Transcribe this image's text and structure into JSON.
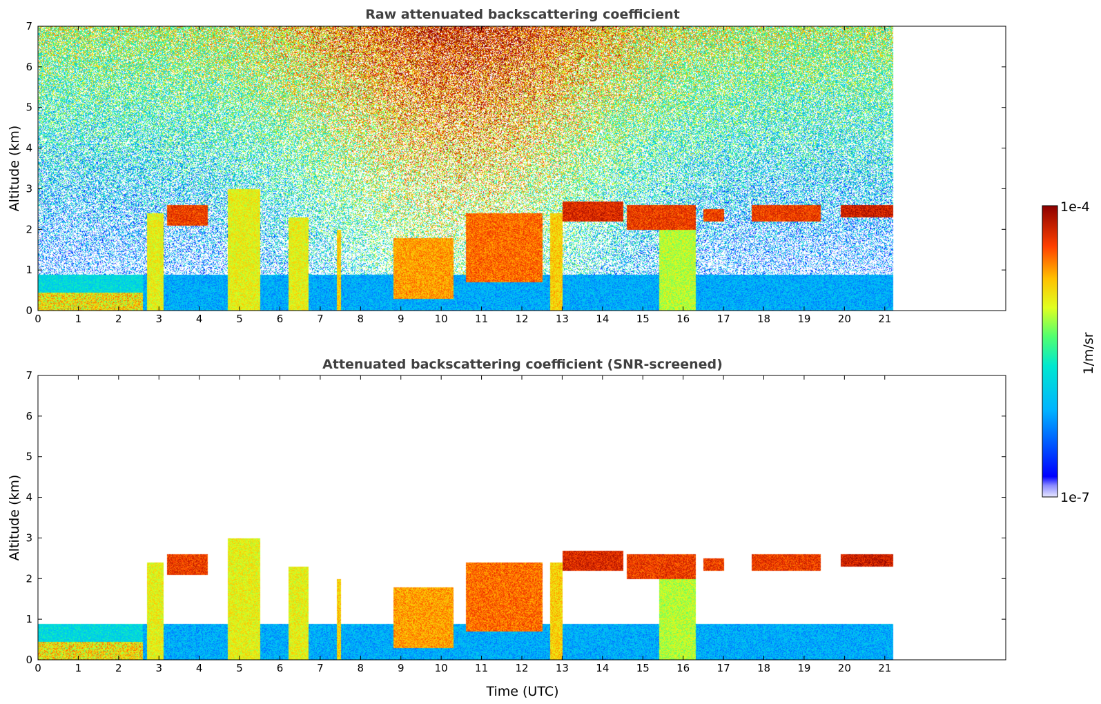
{
  "chart_data": [
    {
      "type": "heatmap",
      "title": "Raw attenuated backscattering coefficient",
      "xlabel": "",
      "ylabel": "Altitude (km)",
      "xlim": [
        0,
        24
      ],
      "ylim": [
        0,
        7
      ],
      "x_ticks": [
        "0",
        "1",
        "2",
        "3",
        "4",
        "5",
        "6",
        "7",
        "8",
        "9",
        "10",
        "11",
        "12",
        "13",
        "14",
        "15",
        "16",
        "17",
        "18",
        "19",
        "20",
        "21"
      ],
      "y_ticks": [
        "0",
        "1",
        "2",
        "3",
        "4",
        "5",
        "6",
        "7"
      ],
      "data_extent_hours": [
        0,
        21.2
      ],
      "grid": false,
      "cloud_layers": [
        {
          "t": [
            2.7,
            3.1
          ],
          "z": [
            0,
            2.4
          ],
          "level": 0.75
        },
        {
          "t": [
            3.2,
            4.2
          ],
          "z": [
            2.1,
            2.6
          ],
          "level": 0.95
        },
        {
          "t": [
            4.7,
            5.5
          ],
          "z": [
            0,
            3.0
          ],
          "level": 0.75
        },
        {
          "t": [
            6.2,
            6.7
          ],
          "z": [
            0,
            2.3
          ],
          "level": 0.75
        },
        {
          "t": [
            7.4,
            7.5
          ],
          "z": [
            0,
            2.0
          ],
          "level": 0.8
        },
        {
          "t": [
            8.8,
            10.3
          ],
          "z": [
            0.3,
            1.8
          ],
          "level": 0.85
        },
        {
          "t": [
            10.6,
            12.5
          ],
          "z": [
            0.7,
            2.4
          ],
          "level": 0.9
        },
        {
          "t": [
            12.7,
            13.0
          ],
          "z": [
            0,
            2.4
          ],
          "level": 0.8
        },
        {
          "t": [
            13.0,
            14.5
          ],
          "z": [
            2.2,
            2.7
          ],
          "level": 0.98
        },
        {
          "t": [
            14.6,
            16.3
          ],
          "z": [
            2.0,
            2.6
          ],
          "level": 0.95
        },
        {
          "t": [
            15.4,
            16.3
          ],
          "z": [
            0,
            2.3
          ],
          "level": 0.7
        },
        {
          "t": [
            16.5,
            17.0
          ],
          "z": [
            2.2,
            2.5
          ],
          "level": 0.95
        },
        {
          "t": [
            17.7,
            19.4
          ],
          "z": [
            2.2,
            2.6
          ],
          "level": 0.95
        },
        {
          "t": [
            19.9,
            21.2
          ],
          "z": [
            2.3,
            2.6
          ],
          "level": 1.0
        }
      ]
    },
    {
      "type": "heatmap",
      "title": "Attenuated backscattering coefficient (SNR-screened)",
      "xlabel": "Time (UTC)",
      "ylabel": "Altitude (km)",
      "xlim": [
        0,
        24
      ],
      "ylim": [
        0,
        7
      ],
      "x_ticks": [
        "0",
        "1",
        "2",
        "3",
        "4",
        "5",
        "6",
        "7",
        "8",
        "9",
        "10",
        "11",
        "12",
        "13",
        "14",
        "15",
        "16",
        "17",
        "18",
        "19",
        "20",
        "21"
      ],
      "y_ticks": [
        "0",
        "1",
        "2",
        "3",
        "4",
        "5",
        "6",
        "7"
      ],
      "data_extent_hours": [
        0,
        21.2
      ],
      "grid": false
    }
  ],
  "colorbar": {
    "label": "1/m/sr",
    "min_label": "1e-7",
    "max_label": "1e-4",
    "colormap": "jet"
  }
}
